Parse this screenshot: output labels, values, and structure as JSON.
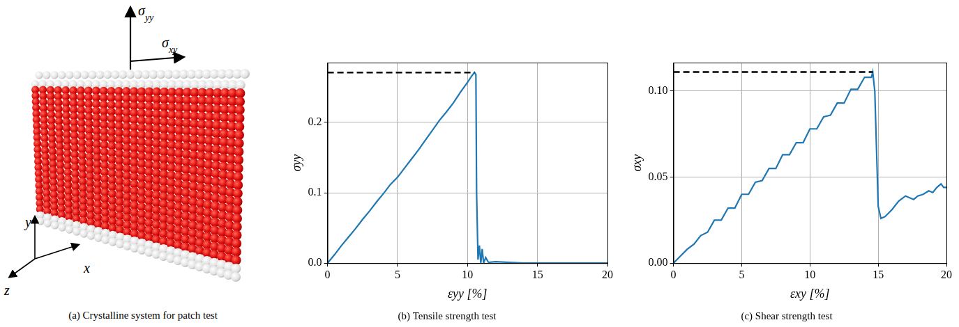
{
  "panel_a": {
    "caption": "(a) Crystalline system for patch test",
    "force_labels": {
      "normal": "σyy",
      "shear": "σxy"
    },
    "axis_labels": {
      "x": "x",
      "y": "y",
      "z": "z"
    }
  },
  "chart_data": [
    {
      "type": "line",
      "title": "(b) Tensile strength test",
      "x_label": "εyy [%]",
      "y_label": "σyy",
      "xlim": [
        0,
        20
      ],
      "xticks": [
        0,
        5,
        10,
        15,
        20
      ],
      "ylim": [
        0,
        0.285
      ],
      "yticks": [
        {
          "value": 0,
          "label": "0.0"
        },
        {
          "value": 0.1,
          "label": "0.1"
        },
        {
          "value": 0.2,
          "label": "0.2"
        }
      ],
      "grid": true,
      "series": [
        {
          "color": "#1f77b4",
          "x": [
            0,
            0.5,
            1,
            1.5,
            2,
            2.5,
            3,
            3.5,
            4,
            4.5,
            5,
            5.5,
            6,
            6.5,
            7,
            7.5,
            8,
            8.5,
            9,
            9.5,
            10,
            10.3,
            10.5,
            10.6,
            10.65,
            10.75,
            10.85,
            10.95,
            11.05,
            11.15,
            11.3,
            11.5,
            12,
            13,
            14,
            15,
            16,
            17,
            18,
            19,
            20
          ],
          "values": [
            0,
            0.012,
            0.025,
            0.037,
            0.049,
            0.062,
            0.074,
            0.087,
            0.099,
            0.112,
            0.122,
            0.135,
            0.148,
            0.161,
            0.175,
            0.189,
            0.203,
            0.215,
            0.228,
            0.243,
            0.257,
            0.266,
            0.271,
            0.268,
            0.1,
            0.005,
            0.025,
            0.0,
            0.02,
            0.0,
            0.008,
            0.001,
            0.002,
            0.001,
            0,
            0,
            0,
            0,
            0,
            0,
            0
          ]
        },
        {
          "color": "#000000",
          "line_style": "dashed",
          "x": [
            0,
            10.5
          ],
          "values": [
            0.271,
            0.271
          ]
        }
      ]
    },
    {
      "type": "line",
      "title": "(c) Shear strength test",
      "x_label": "εxy [%]",
      "y_label": "σxy",
      "xlim": [
        0,
        20
      ],
      "xticks": [
        0,
        5,
        10,
        15,
        20
      ],
      "ylim": [
        0,
        0.1165
      ],
      "yticks": [
        {
          "value": 0,
          "label": "0.00"
        },
        {
          "value": 0.05,
          "label": "0.05"
        },
        {
          "value": 0.1,
          "label": "0.10"
        }
      ],
      "grid": true,
      "series": [
        {
          "color": "#1f77b4",
          "x": [
            0,
            0.5,
            1,
            1.5,
            2,
            2.5,
            3,
            3.5,
            4,
            4.5,
            5,
            5.5,
            6,
            6.5,
            7,
            7.5,
            8,
            8.5,
            9,
            9.5,
            10,
            10.5,
            11,
            11.5,
            12,
            12.5,
            13,
            13.5,
            14,
            14.5,
            14.6,
            14.75,
            14.9,
            15.0,
            15.2,
            15.5,
            16,
            16.5,
            17,
            17.3,
            17.6,
            17.9,
            18.3,
            18.7,
            19.0,
            19.3,
            19.6,
            19.8,
            20
          ],
          "values": [
            0,
            0.004,
            0.008,
            0.011,
            0.016,
            0.018,
            0.025,
            0.025,
            0.032,
            0.032,
            0.04,
            0.04,
            0.047,
            0.048,
            0.055,
            0.055,
            0.063,
            0.063,
            0.07,
            0.07,
            0.078,
            0.078,
            0.085,
            0.086,
            0.093,
            0.093,
            0.101,
            0.101,
            0.108,
            0.108,
            0.111,
            0.1,
            0.06,
            0.033,
            0.026,
            0.027,
            0.031,
            0.036,
            0.039,
            0.038,
            0.037,
            0.039,
            0.04,
            0.042,
            0.041,
            0.044,
            0.046,
            0.044,
            0.044
          ]
        },
        {
          "color": "#000000",
          "line_style": "dashed",
          "x": [
            0,
            14.6
          ],
          "values": [
            0.111,
            0.111
          ]
        }
      ]
    }
  ]
}
